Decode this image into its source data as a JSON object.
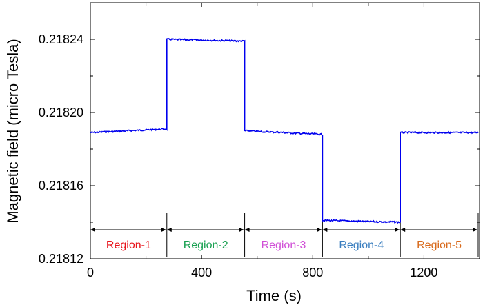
{
  "chart_data": {
    "type": "line",
    "xlabel": "Time (s)",
    "ylabel": "Magnetic field (micro Tesla)",
    "xlim": [
      0,
      1400
    ],
    "ylim": [
      0.21812,
      0.21826
    ],
    "x_ticks": [
      0,
      400,
      800,
      1200
    ],
    "y_ticks": [
      0.21812,
      0.21816,
      0.2182,
      0.21824
    ],
    "x_tick_labels": [
      "0",
      "400",
      "800",
      "1200"
    ],
    "y_tick_labels": [
      "0.21812",
      "0.21816",
      "0.21820",
      "0.21824"
    ],
    "grid": false,
    "series": [
      {
        "color": "#0000ee",
        "segments": [
          {
            "x_start": 0,
            "x_end": 275,
            "y_start": 0.218189,
            "y_end": 0.218191
          },
          {
            "x_start": 275,
            "x_end": 555,
            "y_start": 0.21824,
            "y_end": 0.218239
          },
          {
            "x_start": 555,
            "x_end": 835,
            "y_start": 0.21819,
            "y_end": 0.218188
          },
          {
            "x_start": 835,
            "x_end": 1115,
            "y_start": 0.218141,
            "y_end": 0.21814
          },
          {
            "x_start": 1115,
            "x_end": 1395,
            "y_start": 0.218189,
            "y_end": 0.218189
          }
        ]
      }
    ],
    "regions": [
      {
        "label": "Region-1",
        "x_start": 0,
        "x_end": 275,
        "color": "#e8141b"
      },
      {
        "label": "Region-2",
        "x_start": 275,
        "x_end": 555,
        "color": "#1aa152"
      },
      {
        "label": "Region-3",
        "x_start": 555,
        "x_end": 835,
        "color": "#d04fd6"
      },
      {
        "label": "Region-4",
        "x_start": 835,
        "x_end": 1115,
        "color": "#3a7ebf"
      },
      {
        "label": "Region-5",
        "x_start": 1115,
        "x_end": 1395,
        "color": "#d86a1c"
      }
    ]
  }
}
